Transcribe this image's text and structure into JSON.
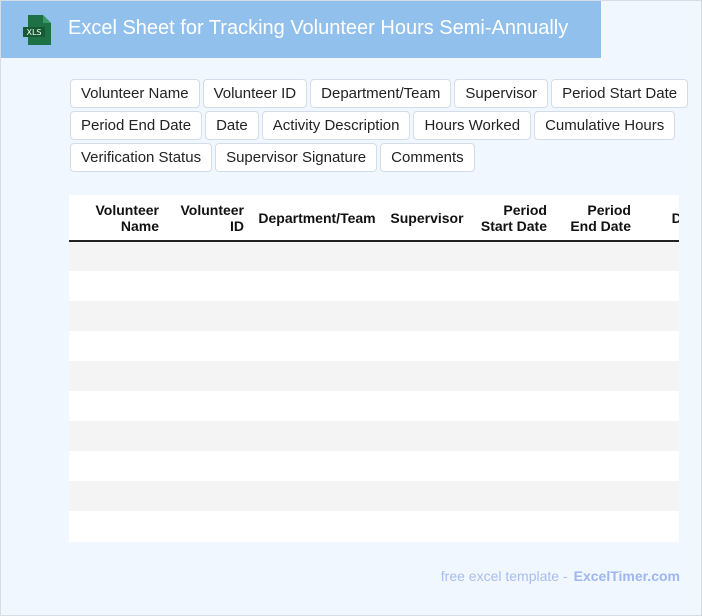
{
  "header": {
    "title": "Excel Sheet for Tracking Volunteer Hours Semi-Annually",
    "logo_text": "XLS",
    "icon": "xls-file-icon",
    "colors": {
      "banner": "#92c0ec",
      "logo": "#1e7145"
    }
  },
  "fields": [
    "Volunteer Name",
    "Volunteer ID",
    "Department/Team",
    "Supervisor",
    "Period Start Date",
    "Period End Date",
    "Date",
    "Activity Description",
    "Hours Worked",
    "Cumulative Hours",
    "Verification Status",
    "Supervisor Signature",
    "Comments"
  ],
  "table": {
    "columns": [
      "Volunteer Name",
      "Volunteer ID",
      "Department/Team",
      "Supervisor",
      "Period Start Date",
      "Period End Date",
      "Date"
    ],
    "row_count": 10
  },
  "footer": {
    "prefix": "free excel template -",
    "brand": "ExcelTimer.com"
  }
}
